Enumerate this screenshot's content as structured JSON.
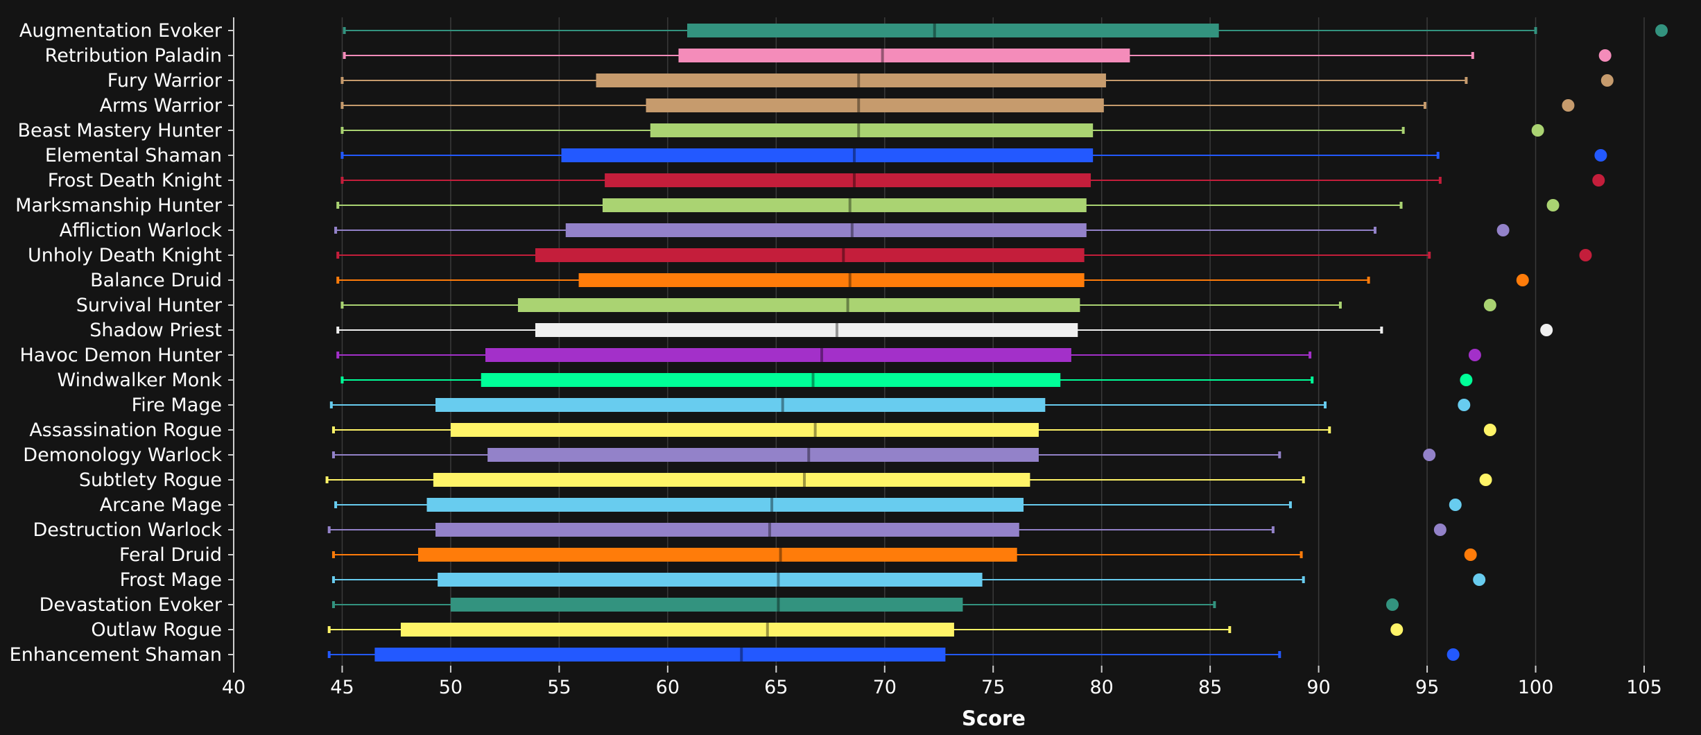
{
  "chart_data": {
    "type": "boxplot",
    "title": "",
    "xlabel": "Score",
    "ylabel": "",
    "xlim": [
      40,
      106
    ],
    "x_ticks": [
      40,
      45,
      50,
      55,
      60,
      65,
      70,
      75,
      80,
      85,
      90,
      95,
      100,
      105
    ],
    "grid": true,
    "background_color": "#141414",
    "grid_color": "#3a3a3a",
    "axis_color": "#cfcfcf",
    "text_color": "#ffffff",
    "categories": [
      "Augmentation Evoker",
      "Retribution Paladin",
      "Fury Warrior",
      "Arms Warrior",
      "Beast Mastery Hunter",
      "Elemental Shaman",
      "Frost Death Knight",
      "Marksmanship Hunter",
      "Affliction Warlock",
      "Unholy Death Knight",
      "Balance Druid",
      "Survival Hunter",
      "Shadow Priest",
      "Havoc Demon Hunter",
      "Windwalker Monk",
      "Fire Mage",
      "Assassination Rogue",
      "Demonology Warlock",
      "Subtlety Rogue",
      "Arcane Mage",
      "Destruction Warlock",
      "Feral Druid",
      "Frost Mage",
      "Devastation Evoker",
      "Outlaw Rogue",
      "Enhancement Shaman"
    ],
    "series": [
      {
        "name": "Augmentation Evoker",
        "color": "#33937f",
        "min": 45.1,
        "q1": 60.9,
        "median": 72.3,
        "q3": 85.4,
        "max": 100.0,
        "max_point": 105.8
      },
      {
        "name": "Retribution Paladin",
        "color": "#f48cba",
        "min": 45.1,
        "q1": 60.5,
        "median": 69.9,
        "q3": 81.3,
        "max": 97.1,
        "max_point": 103.2
      },
      {
        "name": "Fury Warrior",
        "color": "#c69b6d",
        "min": 45.0,
        "q1": 56.7,
        "median": 68.8,
        "q3": 80.2,
        "max": 96.8,
        "max_point": 103.3
      },
      {
        "name": "Arms Warrior",
        "color": "#c69b6d",
        "min": 45.0,
        "q1": 59.0,
        "median": 68.8,
        "q3": 80.1,
        "max": 94.9,
        "max_point": 101.5
      },
      {
        "name": "Beast Mastery Hunter",
        "color": "#aad372",
        "min": 45.0,
        "q1": 59.2,
        "median": 68.8,
        "q3": 79.6,
        "max": 93.9,
        "max_point": 100.1
      },
      {
        "name": "Elemental Shaman",
        "color": "#2359ff",
        "min": 45.0,
        "q1": 55.1,
        "median": 68.6,
        "q3": 79.6,
        "max": 95.5,
        "max_point": 103.0
      },
      {
        "name": "Frost Death Knight",
        "color": "#c41e3b",
        "min": 45.0,
        "q1": 57.1,
        "median": 68.6,
        "q3": 79.5,
        "max": 95.6,
        "max_point": 102.9
      },
      {
        "name": "Marksmanship Hunter",
        "color": "#aad372",
        "min": 44.8,
        "q1": 57.0,
        "median": 68.4,
        "q3": 79.3,
        "max": 93.8,
        "max_point": 100.8
      },
      {
        "name": "Affliction Warlock",
        "color": "#9382c9",
        "min": 44.7,
        "q1": 55.3,
        "median": 68.5,
        "q3": 79.3,
        "max": 92.6,
        "max_point": 98.5
      },
      {
        "name": "Unholy Death Knight",
        "color": "#c41e3b",
        "min": 44.8,
        "q1": 53.9,
        "median": 68.1,
        "q3": 79.2,
        "max": 95.1,
        "max_point": 102.3
      },
      {
        "name": "Balance Druid",
        "color": "#ff7c0a",
        "min": 44.8,
        "q1": 55.9,
        "median": 68.4,
        "q3": 79.2,
        "max": 92.3,
        "max_point": 99.4
      },
      {
        "name": "Survival Hunter",
        "color": "#aad372",
        "min": 45.0,
        "q1": 53.1,
        "median": 68.3,
        "q3": 79.0,
        "max": 91.0,
        "max_point": 97.9
      },
      {
        "name": "Shadow Priest",
        "color": "#f0f0f0",
        "min": 44.8,
        "q1": 53.9,
        "median": 67.8,
        "q3": 78.9,
        "max": 92.9,
        "max_point": 100.5
      },
      {
        "name": "Havoc Demon Hunter",
        "color": "#a330c9",
        "min": 44.8,
        "q1": 51.6,
        "median": 67.1,
        "q3": 78.6,
        "max": 89.6,
        "max_point": 97.2
      },
      {
        "name": "Windwalker Monk",
        "color": "#00ff98",
        "min": 45.0,
        "q1": 51.4,
        "median": 66.7,
        "q3": 78.1,
        "max": 89.7,
        "max_point": 96.8
      },
      {
        "name": "Fire Mage",
        "color": "#68ccef",
        "min": 44.5,
        "q1": 49.3,
        "median": 65.3,
        "q3": 77.4,
        "max": 90.3,
        "max_point": 96.7
      },
      {
        "name": "Assassination Rogue",
        "color": "#fff468",
        "min": 44.6,
        "q1": 50.0,
        "median": 66.8,
        "q3": 77.1,
        "max": 90.5,
        "max_point": 97.9
      },
      {
        "name": "Demonology Warlock",
        "color": "#9382c9",
        "min": 44.6,
        "q1": 51.7,
        "median": 66.5,
        "q3": 77.1,
        "max": 88.2,
        "max_point": 95.1
      },
      {
        "name": "Subtlety Rogue",
        "color": "#fff468",
        "min": 44.3,
        "q1": 49.2,
        "median": 66.3,
        "q3": 76.7,
        "max": 89.3,
        "max_point": 97.7
      },
      {
        "name": "Arcane Mage",
        "color": "#68ccef",
        "min": 44.7,
        "q1": 48.9,
        "median": 64.8,
        "q3": 76.4,
        "max": 88.7,
        "max_point": 96.3
      },
      {
        "name": "Destruction Warlock",
        "color": "#9382c9",
        "min": 44.4,
        "q1": 49.3,
        "median": 64.7,
        "q3": 76.2,
        "max": 87.9,
        "max_point": 95.6
      },
      {
        "name": "Feral Druid",
        "color": "#ff7c0a",
        "min": 44.6,
        "q1": 48.5,
        "median": 65.2,
        "q3": 76.1,
        "max": 89.2,
        "max_point": 97.0
      },
      {
        "name": "Frost Mage",
        "color": "#68ccef",
        "min": 44.6,
        "q1": 49.4,
        "median": 65.1,
        "q3": 74.5,
        "max": 89.3,
        "max_point": 97.4
      },
      {
        "name": "Devastation Evoker",
        "color": "#33937f",
        "min": 44.6,
        "q1": 50.0,
        "median": 65.1,
        "q3": 73.6,
        "max": 85.2,
        "max_point": 93.4
      },
      {
        "name": "Outlaw Rogue",
        "color": "#fff468",
        "min": 44.4,
        "q1": 47.7,
        "median": 64.6,
        "q3": 73.2,
        "max": 85.9,
        "max_point": 93.6
      },
      {
        "name": "Enhancement Shaman",
        "color": "#2359ff",
        "min": 44.4,
        "q1": 46.5,
        "median": 63.4,
        "q3": 72.8,
        "max": 88.2,
        "max_point": 96.2
      }
    ]
  }
}
